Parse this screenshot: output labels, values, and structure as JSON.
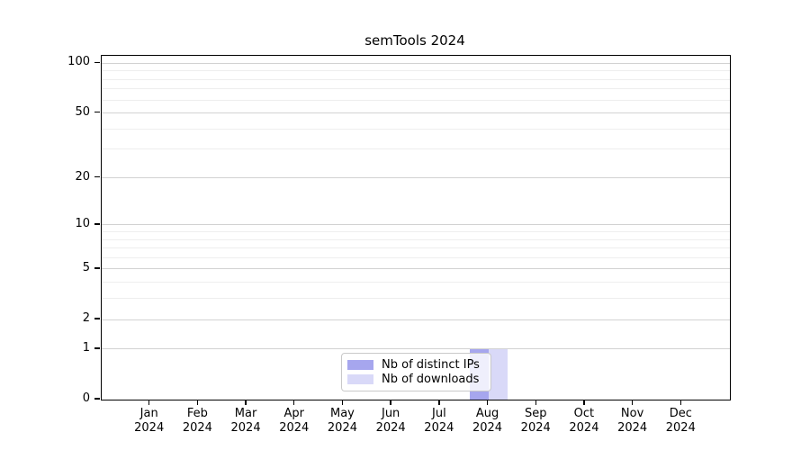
{
  "chart_data": {
    "type": "bar",
    "title": "semTools 2024",
    "x_categories": [
      "Jan",
      "Feb",
      "Mar",
      "Apr",
      "May",
      "Jun",
      "Jul",
      "Aug",
      "Sep",
      "Oct",
      "Nov",
      "Dec"
    ],
    "x_sublabel": "2024",
    "series": [
      {
        "name": "Nb of distinct IPs",
        "color": "#a6a6ee",
        "values": [
          0,
          0,
          0,
          0,
          0,
          0,
          0,
          1,
          0,
          0,
          0,
          0
        ]
      },
      {
        "name": "Nb of downloads",
        "color": "#d9d9f8",
        "values": [
          0,
          0,
          0,
          0,
          0,
          0,
          0,
          1,
          0,
          0,
          0,
          0
        ]
      }
    ],
    "y_axis": {
      "scale": "log1p",
      "ticks": [
        0,
        1,
        2,
        5,
        10,
        20,
        50,
        100
      ],
      "minor_gridlines": [
        3,
        4,
        6,
        7,
        8,
        9,
        30,
        40,
        60,
        70,
        80,
        90
      ],
      "range": [
        0,
        111
      ]
    },
    "legend": {
      "position": "lower-center"
    },
    "grid": true
  },
  "colors": {
    "major_grid": "#d2d2d2",
    "minor_grid": "#eeeeee",
    "spine": "#000000"
  }
}
